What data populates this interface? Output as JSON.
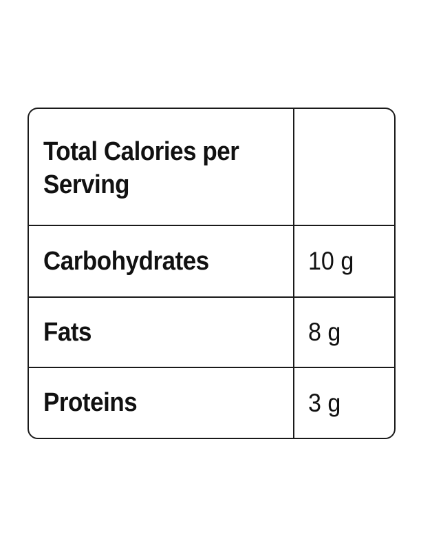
{
  "table": {
    "header": {
      "label": "Total Calories per Serving",
      "value": ""
    },
    "rows": [
      {
        "label": "Carbohydrates",
        "value": "10 g"
      },
      {
        "label": "Fats",
        "value": "8 g"
      },
      {
        "label": "Proteins",
        "value": "3 g"
      }
    ]
  }
}
